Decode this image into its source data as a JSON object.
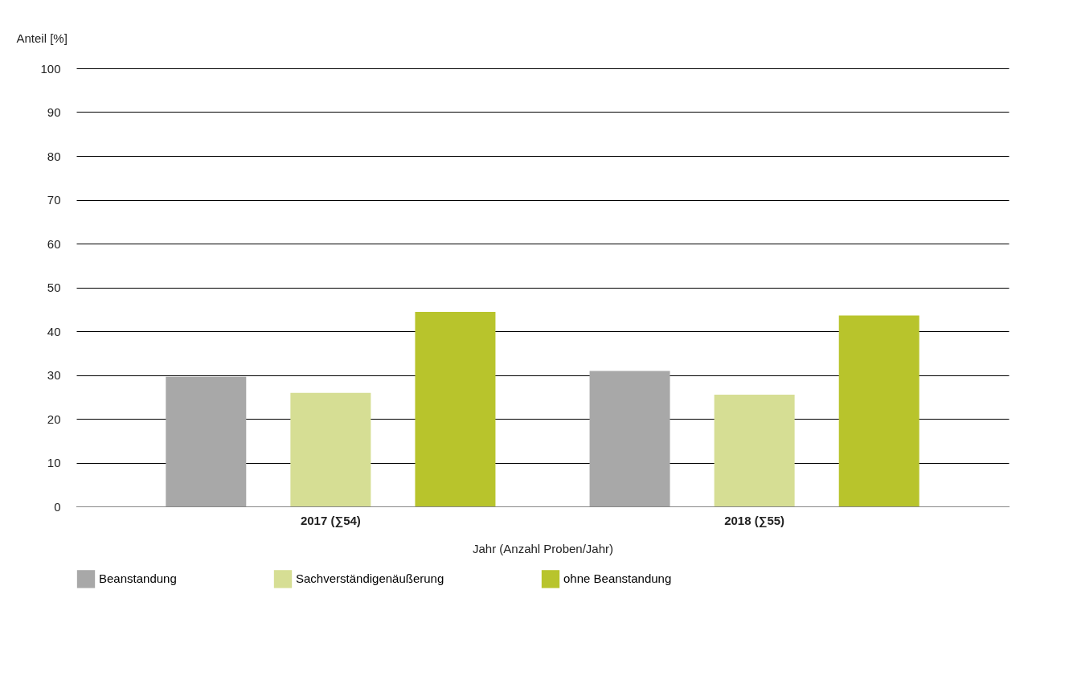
{
  "chart_data": {
    "type": "bar",
    "ylabel": "Anteil [%]",
    "xlabel": "Jahr (Anzahl Proben/Jahr)",
    "categories": [
      "2017 (∑54)",
      "2018 (∑55)"
    ],
    "series": [
      {
        "name": "Beanstandung",
        "color": "#a8a8a8",
        "values": [
          29.6,
          30.9
        ]
      },
      {
        "name": "Sachverständigenäußerung",
        "color": "#d6de94",
        "values": [
          25.9,
          25.5
        ]
      },
      {
        "name": "ohne Beanstandung",
        "color": "#b8c42c",
        "values": [
          44.4,
          43.6
        ]
      }
    ],
    "ylim": [
      0,
      100
    ],
    "yticks": [
      0,
      10,
      20,
      30,
      40,
      50,
      60,
      70,
      80,
      90,
      100
    ],
    "grid": "y",
    "legend": "bottom"
  }
}
